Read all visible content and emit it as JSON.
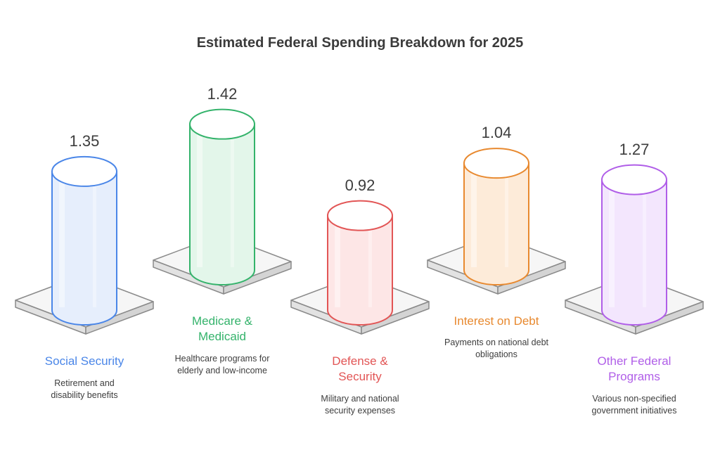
{
  "chart_data": {
    "type": "bar",
    "title": "Estimated Federal Spending Breakdown for 2025",
    "xlabel": "",
    "ylabel": "",
    "ylim": [
      0,
      1.5
    ],
    "categories": [
      "Social Security",
      "Medicare & Medicaid",
      "Defense & Security",
      "Interest on Debt",
      "Other Federal Programs"
    ],
    "values": [
      1.35,
      1.42,
      0.92,
      1.04,
      1.27
    ],
    "value_labels": [
      "1.35",
      "1.42",
      "0.92",
      "1.04",
      "1.27"
    ],
    "descriptions": [
      "Retirement and disability benefits",
      "Healthcare programs for elderly and low-income",
      "Military and national security expenses",
      "Payments on national debt obligations",
      "Various non-specified government initiatives"
    ],
    "colors": [
      "#4a86e8",
      "#34b36b",
      "#e25555",
      "#e8892f",
      "#b05ee8"
    ],
    "fills": [
      "#e6eefc",
      "#e3f6ea",
      "#fde6e6",
      "#fdebd9",
      "#f3e6fd"
    ]
  }
}
